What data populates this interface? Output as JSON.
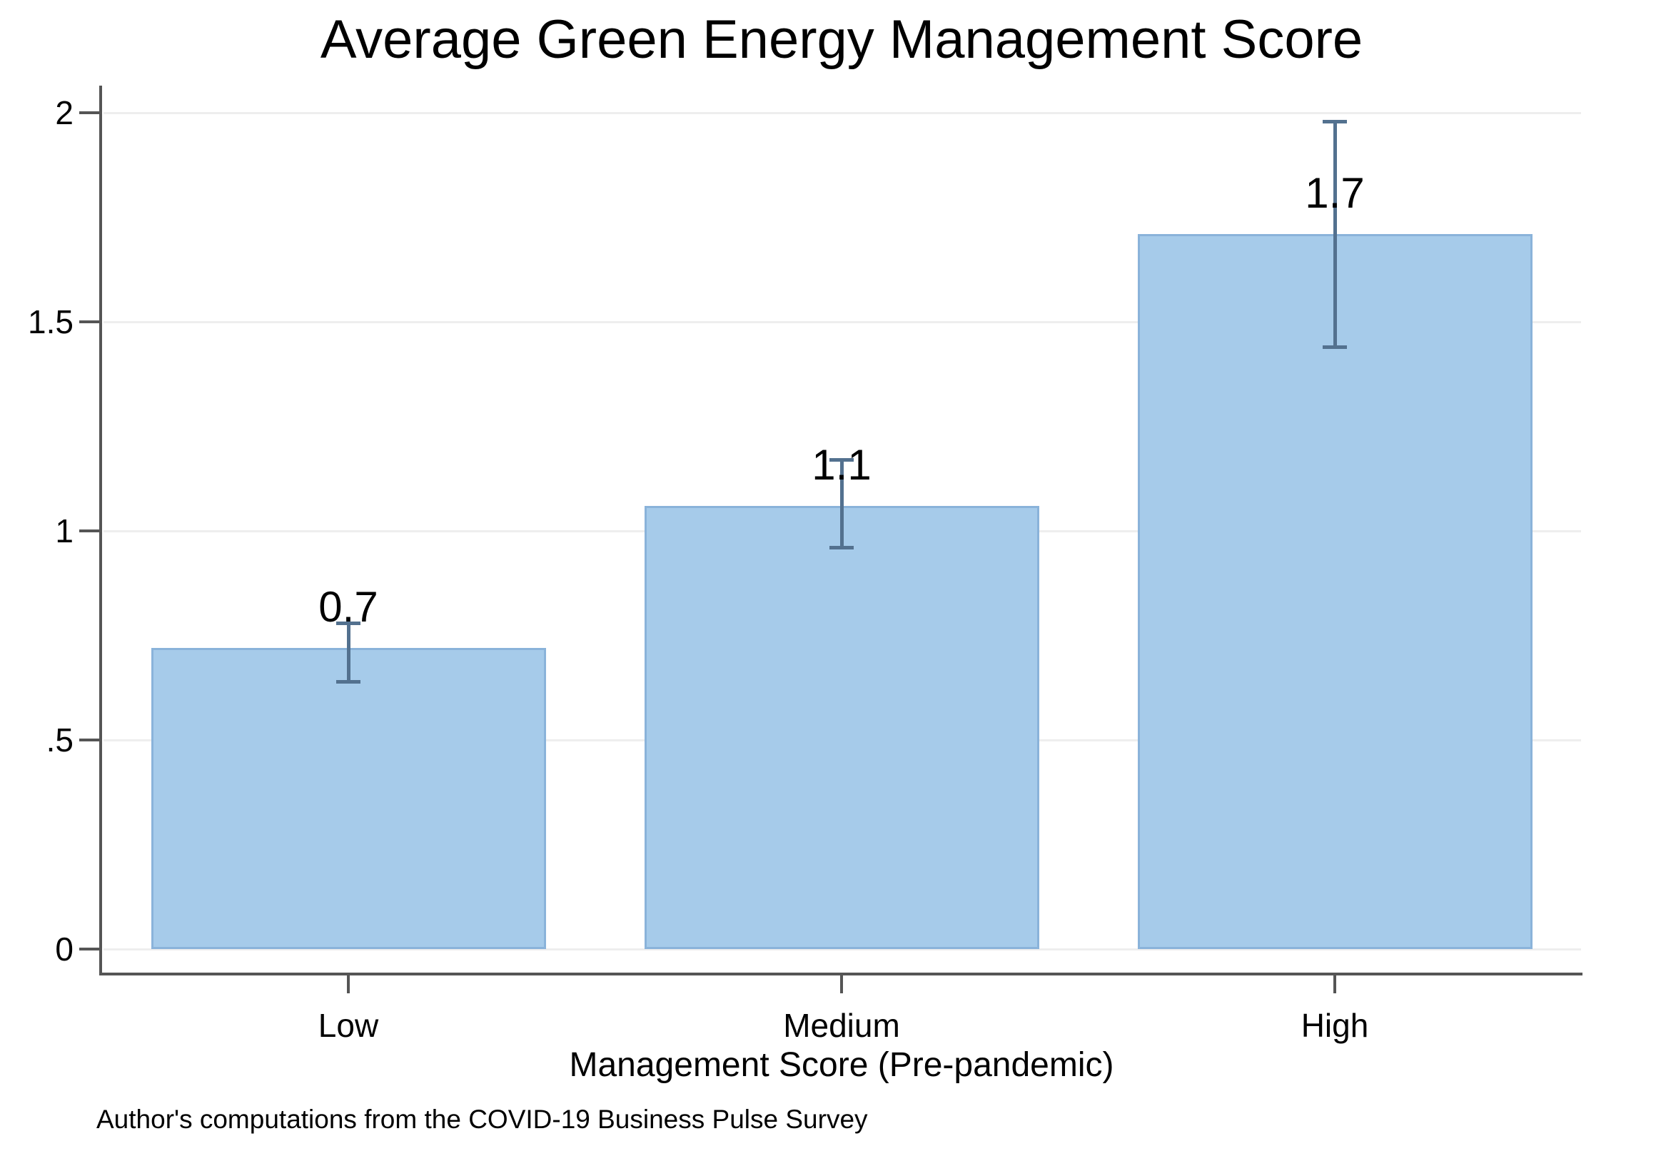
{
  "title": "Average Green Energy Management Score",
  "footnote": "Author's computations from the COVID-19 Business Pulse Survey",
  "chart_data": {
    "type": "bar",
    "title": "Average Green Energy Management Score",
    "xlabel": "Management Score (Pre-pandemic)",
    "ylabel": "",
    "note": "Author's computations from the COVID-19 Business Pulse Survey",
    "categories": [
      "Low",
      "Medium",
      "High"
    ],
    "values": [
      0.72,
      1.06,
      1.71
    ],
    "bar_labels": [
      "0.7",
      "1.1",
      "1.7"
    ],
    "error_bars": [
      {
        "low": 0.64,
        "high": 0.78
      },
      {
        "low": 0.96,
        "high": 1.17
      },
      {
        "low": 1.44,
        "high": 1.98
      }
    ],
    "y_tick_labels": [
      "0",
      ".5",
      "1",
      "1.5",
      "2"
    ],
    "y_tick_values": [
      0,
      0.5,
      1,
      1.5,
      2
    ],
    "ylim": [
      0,
      2.06
    ],
    "grid": true,
    "legend": "none",
    "colors": {
      "bar_fill": "#a6cbea",
      "bar_border": "#8ab3da",
      "error_bar": "#53718f",
      "axis": "#555555",
      "gridline": "#eeeeee",
      "text": "#000000",
      "background": "#ffffff"
    }
  }
}
